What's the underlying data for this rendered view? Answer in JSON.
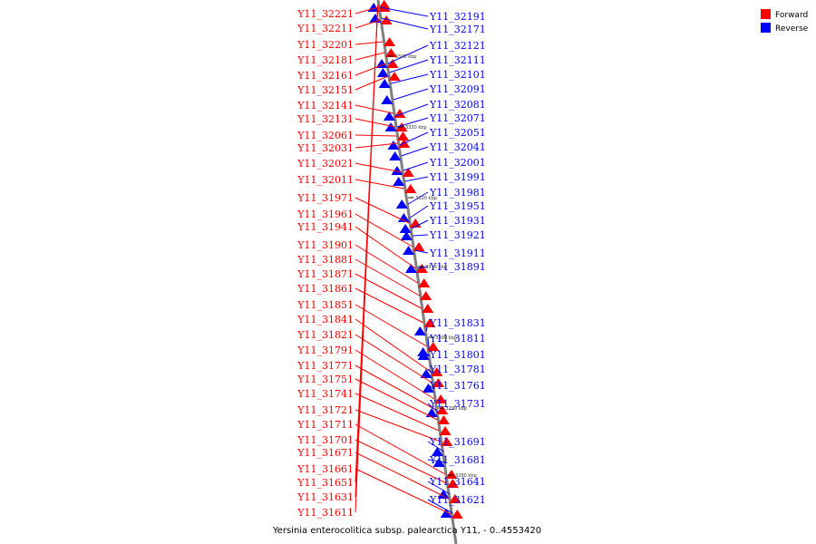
{
  "caption": "Yersinia enterocolitica subsp. palearctica Y11, - 0..4553420",
  "legend": [
    {
      "label": "Forward",
      "color": "#ff0000"
    },
    {
      "label": "Reverse",
      "color": "#0000ff"
    }
  ],
  "colors": {
    "forward": "#ff0000",
    "reverse": "#0000ff",
    "axis": "#808080"
  },
  "ticks": [
    "3340 kbp",
    "3330 kbp",
    "3320 kbp",
    "3310 kbp",
    "3300 kbp",
    "3290 kbp",
    "3280 kbp"
  ],
  "forward_genes": [
    "Y11_32221",
    "Y11_32211",
    "Y11_32201",
    "Y11_32181",
    "Y11_32161",
    "Y11_32151",
    "Y11_32141",
    "Y11_32131",
    "Y11_32061",
    "Y11_32031",
    "Y11_32021",
    "Y11_32011",
    "Y11_31971",
    "Y11_31961",
    "Y11_31941",
    "Y11_31901",
    "Y11_31881",
    "Y11_31871",
    "Y11_31861",
    "Y11_31851",
    "Y11_31841",
    "Y11_31821",
    "Y11_31791",
    "Y11_31771",
    "Y11_31751",
    "Y11_31741",
    "Y11_31721",
    "Y11_31711",
    "Y11_31701",
    "Y11_31671",
    "Y11_31661",
    "Y11_31651",
    "Y11_31631",
    "Y11_31611"
  ],
  "reverse_genes": [
    "Y11_32191",
    "Y11_32171",
    "Y11_32121",
    "Y11_32111",
    "Y11_32101",
    "Y11_32091",
    "Y11_32081",
    "Y11_32071",
    "Y11_32051",
    "Y11_32041",
    "Y11_32001",
    "Y11_31991",
    "Y11_31981",
    "Y11_31951",
    "Y11_31931",
    "Y11_31921",
    "Y11_31911",
    "Y11_31891",
    "Y11_31831",
    "Y11_31811",
    "Y11_31801",
    "Y11_31781",
    "Y11_31761",
    "Y11_31731",
    "Y11_31691",
    "Y11_31681",
    "Y11_31641",
    "Y11_31621"
  ]
}
